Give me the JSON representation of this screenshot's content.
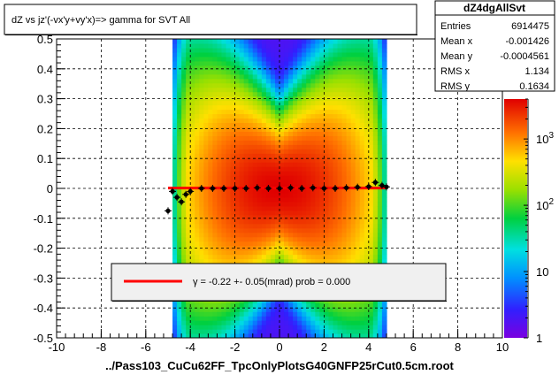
{
  "title": "dZ vs    jz'(-vx'y+vy'x)=> gamma for SVT All",
  "xlabel": "../Pass103_CuCu62FF_TpcOnlyPlotsG40GNFP25rCut0.5cm.root",
  "stats": {
    "name": "dZ4dgAllSvt",
    "rows": [
      {
        "label": "Entries",
        "value": "6914475"
      },
      {
        "label": "Mean x",
        "value": "-0.001426"
      },
      {
        "label": "Mean y",
        "value": "-0.0004561"
      },
      {
        "label": "RMS x",
        "value": "1.134"
      },
      {
        "label": "RMS y",
        "value": "0.1634"
      }
    ]
  },
  "legend": {
    "entry": "γ =    -0.22 +-     0.05(mrad) prob = 0.000",
    "color": "#ff0000"
  },
  "colorbar": {
    "labels": [
      {
        "base": "10",
        "exp": "3",
        "value": 1000
      },
      {
        "base": "10",
        "exp": "2",
        "value": 100
      },
      {
        "base": "10",
        "exp": "",
        "value": 10
      },
      {
        "base": "1",
        "exp": "",
        "value": 1
      }
    ],
    "range": [
      1,
      4000
    ]
  },
  "chart_data": {
    "type": "heatmap",
    "title": "dZ vs    jz'(-vx'y+vy'x)=> gamma for SVT All",
    "xlabel": "../Pass103_CuCu62FF_TpcOnlyPlotsG40GNFP25rCut0.5cm.root",
    "ylabel": "",
    "xlim": [
      -10,
      10
    ],
    "ylim": [
      -0.5,
      0.5
    ],
    "xticks": [
      "-10",
      "-8",
      "-6",
      "-4",
      "-2",
      "0",
      "2",
      "4",
      "6",
      "8",
      "10"
    ],
    "yticks": [
      "-0.5",
      "-0.4",
      "-0.3",
      "-0.2",
      "-0.1",
      "0",
      "0.1",
      "0.2",
      "0.3",
      "0.4",
      "0.5"
    ],
    "z_scale": "log",
    "grid": true,
    "profile_points": [
      {
        "x": -5.0,
        "y": -0.075
      },
      {
        "x": -4.8,
        "y": -0.01
      },
      {
        "x": -4.6,
        "y": -0.03
      },
      {
        "x": -4.4,
        "y": -0.045
      },
      {
        "x": -4.2,
        "y": -0.02
      },
      {
        "x": -4.0,
        "y": -0.01
      },
      {
        "x": -3.5,
        "y": 0.0
      },
      {
        "x": -3.0,
        "y": 0.0
      },
      {
        "x": -2.5,
        "y": 0.0
      },
      {
        "x": -2.0,
        "y": 0.0
      },
      {
        "x": -1.5,
        "y": 0.0
      },
      {
        "x": -1.0,
        "y": 0.002
      },
      {
        "x": -0.5,
        "y": 0.0
      },
      {
        "x": 0.0,
        "y": 0.0
      },
      {
        "x": 0.5,
        "y": 0.002
      },
      {
        "x": 1.0,
        "y": 0.0
      },
      {
        "x": 1.5,
        "y": 0.002
      },
      {
        "x": 2.0,
        "y": 0.0
      },
      {
        "x": 2.5,
        "y": 0.0
      },
      {
        "x": 3.0,
        "y": 0.002
      },
      {
        "x": 3.5,
        "y": 0.004
      },
      {
        "x": 4.0,
        "y": 0.006
      },
      {
        "x": 4.3,
        "y": 0.02
      },
      {
        "x": 4.6,
        "y": 0.01
      },
      {
        "x": 4.8,
        "y": 0.005
      }
    ],
    "fit_line": {
      "x": [
        -5.0,
        4.8
      ],
      "y": [
        0.001,
        0.001
      ],
      "color": "#ff0000"
    }
  }
}
